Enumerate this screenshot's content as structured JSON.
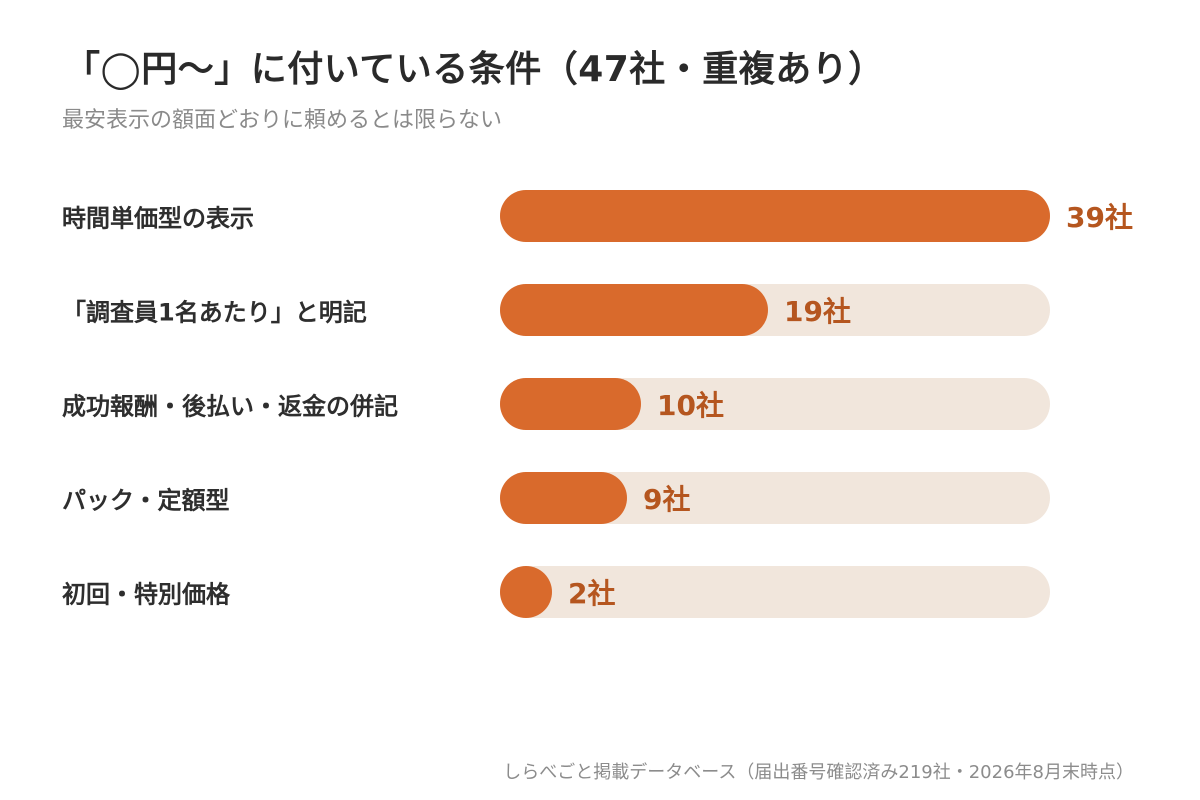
{
  "title": "「◯円〜」に付いている条件（47社・重複あり）",
  "subtitle": "最安表示の額面どおりに頼めるとは限らない",
  "source": "しらべごと掲載データベース（届出番号確認済み219社・2026年8月末時点）",
  "colors": {
    "bar": "#d96a2c",
    "track": "#f1e6dc",
    "value_text": "#b5561f"
  },
  "chart_data": {
    "type": "bar",
    "orientation": "horizontal",
    "total": 47,
    "unit": "社",
    "xlim": [
      0,
      39
    ],
    "categories": [
      "時間単価型の表示",
      "「調査員1名あたり」と明記",
      "成功報酬・後払い・返金の併記",
      "パック・定額型",
      "初回・特別価格"
    ],
    "values": [
      39,
      19,
      10,
      9,
      2
    ],
    "value_labels": [
      "39社",
      "19社",
      "10社",
      "9社",
      "2社"
    ]
  }
}
